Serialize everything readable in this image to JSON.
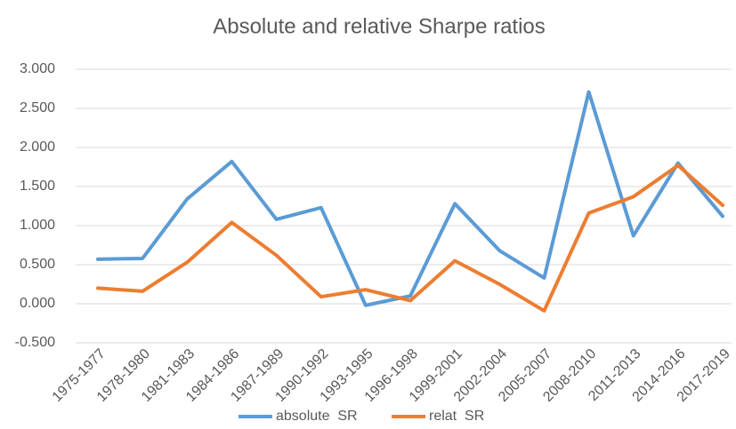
{
  "chart_data": {
    "type": "line",
    "title": "Absolute and relative Sharpe ratios",
    "categories": [
      "1975-1977",
      "1978-1980",
      "1981-1983",
      "1984-1986",
      "1987-1989",
      "1990-1992",
      "1993-1995",
      "1996-1998",
      "1999-2001",
      "2002-2004",
      "2005-2007",
      "2008-2010",
      "2011-2013",
      "2014-2016",
      "2017-2019"
    ],
    "series": [
      {
        "name": "absolute  SR",
        "color": "#5b9bd5",
        "values": [
          0.57,
          0.58,
          1.34,
          1.82,
          1.08,
          1.23,
          -0.02,
          0.1,
          1.28,
          0.68,
          0.33,
          2.71,
          0.87,
          1.8,
          1.12
        ]
      },
      {
        "name": "relat  SR",
        "color": "#ed7d31",
        "values": [
          0.2,
          0.16,
          0.53,
          1.04,
          0.62,
          0.09,
          0.18,
          0.04,
          0.55,
          0.25,
          -0.09,
          1.16,
          1.37,
          1.77,
          1.26
        ]
      }
    ],
    "ylim": [
      -0.5,
      3
    ],
    "yticks": [
      {
        "value": -0.5,
        "label": "-0.500"
      },
      {
        "value": 0,
        "label": "0.000"
      },
      {
        "value": 0.5,
        "label": "0.500"
      },
      {
        "value": 1,
        "label": "1.000"
      },
      {
        "value": 1.5,
        "label": "1.500"
      },
      {
        "value": 2,
        "label": "2.000"
      },
      {
        "value": 2.5,
        "label": "2.500"
      },
      {
        "value": 3,
        "label": "3.000"
      }
    ],
    "grid": true,
    "legend": "bottom"
  }
}
